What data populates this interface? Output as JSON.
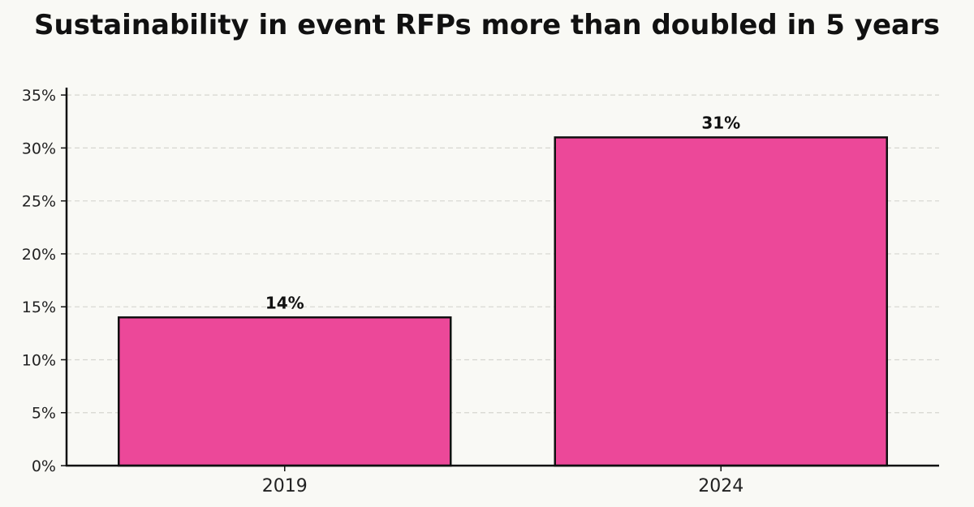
{
  "chart_data": {
    "type": "bar",
    "title": "Sustainability in event RFPs more than doubled in 5 years",
    "xlabel": "",
    "ylabel": "",
    "categories": [
      "2019",
      "2024"
    ],
    "values": [
      14,
      31
    ],
    "data_labels": [
      "14%",
      "31%"
    ],
    "ylim": [
      0,
      35.7
    ],
    "yticks": [
      0,
      5,
      10,
      15,
      20,
      25,
      30,
      35
    ],
    "ytick_labels": [
      "0%",
      "5%",
      "10%",
      "15%",
      "20%",
      "25%",
      "30%",
      "35%"
    ],
    "grid": "horizontal dashed",
    "bar_color": "#ec4899",
    "edge_color": "#111111"
  }
}
